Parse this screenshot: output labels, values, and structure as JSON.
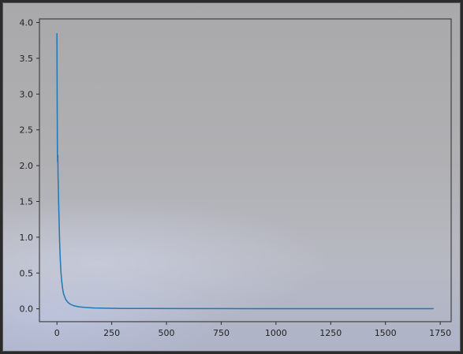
{
  "chart_data": {
    "type": "line",
    "title": "",
    "xlabel": "",
    "ylabel": "",
    "xlim": [
      -80,
      1800
    ],
    "ylim": [
      -0.18,
      4.05
    ],
    "x_ticks": [
      0,
      250,
      500,
      750,
      1000,
      1250,
      1500,
      1750
    ],
    "x_tick_labels": [
      "0",
      "250",
      "500",
      "750",
      "1000",
      "1250",
      "1500",
      "1750"
    ],
    "y_ticks": [
      0.0,
      0.5,
      1.0,
      1.5,
      2.0,
      2.5,
      3.0,
      3.5,
      4.0
    ],
    "y_tick_labels": [
      "0.0",
      "0.5",
      "1.0",
      "1.5",
      "2.0",
      "2.5",
      "3.0",
      "3.5",
      "4.0"
    ],
    "grid": false,
    "line_color": "#1f77b4",
    "series": [
      {
        "x": [
          0,
          1,
          2,
          3,
          4,
          5,
          6,
          7,
          8,
          10,
          12,
          15,
          18,
          22,
          26,
          30,
          40,
          50,
          60,
          80,
          100,
          130,
          170,
          220,
          300,
          400,
          600,
          900,
          1200,
          1500,
          1720
        ],
        "y": [
          3.85,
          2.9,
          2.2,
          2.05,
          2.15,
          1.85,
          1.75,
          1.6,
          1.45,
          1.2,
          0.95,
          0.7,
          0.52,
          0.38,
          0.28,
          0.21,
          0.13,
          0.09,
          0.065,
          0.04,
          0.028,
          0.018,
          0.012,
          0.008,
          0.005,
          0.004,
          0.003,
          0.002,
          0.002,
          0.002,
          0.002
        ]
      }
    ]
  }
}
